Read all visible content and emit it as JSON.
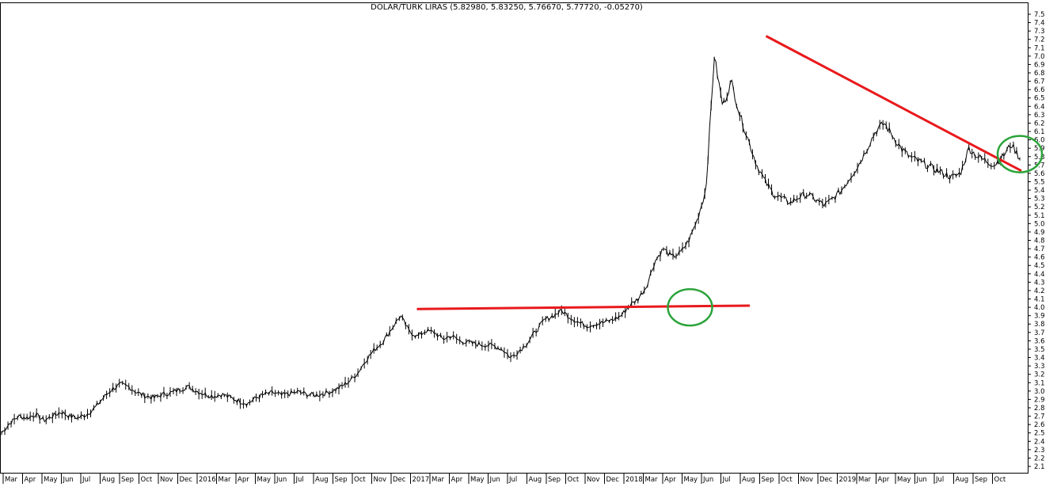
{
  "chart_data": {
    "type": "line",
    "title": "DOLAR/TURK LIRAS (5.82980, 5.83250, 5.76670, 5.77720, -0.05270)",
    "xlabel": "",
    "ylabel": "",
    "ylim": [
      2.1,
      7.5
    ],
    "grid": false,
    "y_ticks": [
      "2.1",
      "2.2",
      "2.3",
      "2.4",
      "2.5",
      "2.6",
      "2.7",
      "2.8",
      "2.9",
      "3.0",
      "3.1",
      "3.2",
      "3.3",
      "3.4",
      "3.5",
      "3.6",
      "3.7",
      "3.8",
      "3.9",
      "4.0",
      "4.1",
      "4.2",
      "4.3",
      "4.4",
      "4.5",
      "4.6",
      "4.7",
      "4.8",
      "4.9",
      "5.0",
      "5.1",
      "5.2",
      "5.3",
      "5.4",
      "5.5",
      "5.6",
      "5.7",
      "5.8",
      "5.9",
      "6.0",
      "6.1",
      "6.2",
      "6.3",
      "6.4",
      "6.5",
      "6.6",
      "6.7",
      "6.8",
      "6.9",
      "7.0",
      "7.1",
      "7.2",
      "7.3",
      "7.4",
      "7.5"
    ],
    "x_ticks": [
      "Mar",
      "Apr",
      "May",
      "Jun",
      "Jul",
      "Aug",
      "Sep",
      "Oct",
      "Nov",
      "Dec",
      "2016",
      "Mar",
      "Apr",
      "May",
      "Jun",
      "Jul",
      "Aug",
      "Sep",
      "Oct",
      "Nov",
      "Dec",
      "2017",
      "Mar",
      "Apr",
      "May",
      "Jun",
      "Jul",
      "Aug",
      "Sep",
      "Oct",
      "Nov",
      "Dec",
      "2018",
      "Mar",
      "Apr",
      "May",
      "Jun",
      "Jul",
      "Aug",
      "Sep",
      "Oct",
      "Nov",
      "Dec",
      "2019",
      "Mar",
      "Apr",
      "May",
      "Jun",
      "Jul",
      "Aug",
      "Sep",
      "Oct"
    ],
    "series": [
      {
        "values": [
          2.5,
          2.62,
          2.7,
          2.68,
          2.72,
          2.65,
          2.7,
          2.75,
          2.7,
          2.68,
          2.72,
          2.8,
          2.92,
          3.02,
          3.08,
          3.05,
          2.98,
          2.94,
          2.92,
          2.96,
          2.98,
          3.02,
          3.05,
          3.0,
          2.96,
          2.94,
          2.96,
          2.92,
          2.88,
          2.85,
          2.92,
          2.96,
          2.98,
          2.95,
          2.97,
          2.99,
          2.96,
          2.95,
          2.97,
          3.0,
          3.05,
          3.12,
          3.22,
          3.38,
          3.5,
          3.6,
          3.75,
          3.9,
          3.72,
          3.65,
          3.72,
          3.7,
          3.62,
          3.66,
          3.6,
          3.58,
          3.56,
          3.55,
          3.54,
          3.5,
          3.4,
          3.48,
          3.58,
          3.72,
          3.85,
          3.9,
          3.96,
          3.88,
          3.82,
          3.78,
          3.8,
          3.82,
          3.85,
          3.9,
          4.02,
          4.1,
          4.25,
          4.55,
          4.7,
          4.6,
          4.65,
          4.8,
          5.05,
          5.4,
          7.0,
          6.4,
          6.7,
          6.3,
          6.0,
          5.7,
          5.5,
          5.35,
          5.3,
          5.25,
          5.32,
          5.35,
          5.28,
          5.22,
          5.3,
          5.4,
          5.55,
          5.7,
          5.9,
          6.1,
          6.2,
          6.05,
          5.9,
          5.8,
          5.75,
          5.7,
          5.65,
          5.6,
          5.55,
          5.6,
          5.9,
          5.8,
          5.75,
          5.7,
          5.8,
          5.95,
          5.78
        ]
      }
    ],
    "trendlines": [
      {
        "from": [
          "Dec 2016",
          3.98
        ],
        "to": [
          "Jul 2018",
          4.02
        ],
        "color": "#e8191c"
      },
      {
        "from": [
          "Aug 2018",
          7.24
        ],
        "to": [
          "Oct 2019",
          5.63
        ],
        "color": "#e8191c"
      }
    ],
    "circled_areas": [
      {
        "near": [
          "Apr 2018",
          4.0
        ],
        "color": "#2ca33a"
      },
      {
        "near": [
          "Oct 2019",
          5.83
        ],
        "color": "#2ca33a"
      }
    ]
  }
}
